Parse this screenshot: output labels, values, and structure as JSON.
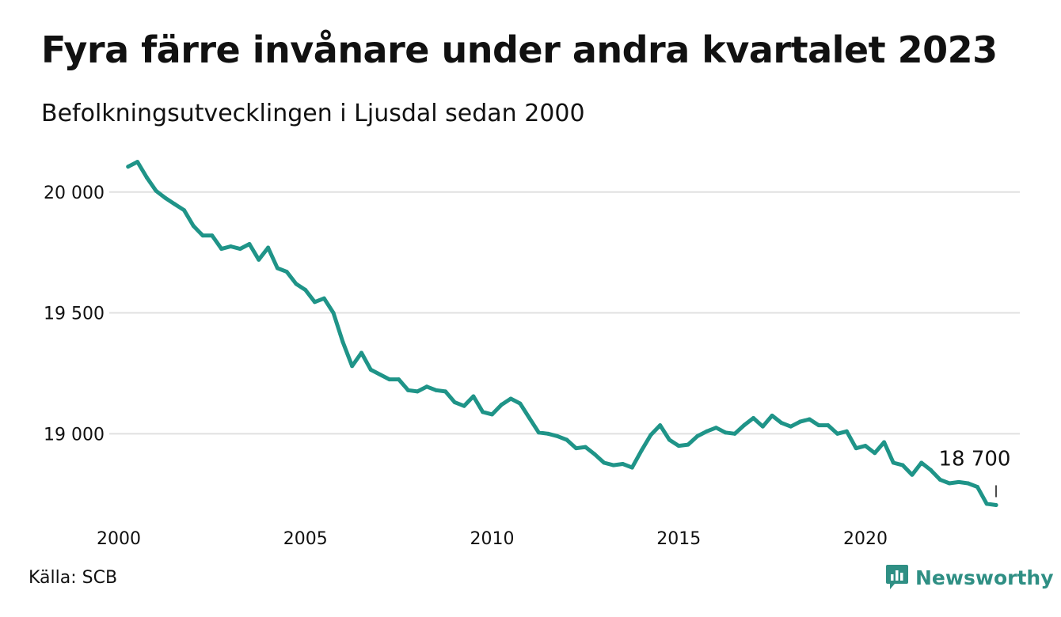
{
  "title": "Fyra färre invånare under andra kvartalet 2023",
  "subtitle": "Befolkningsutvecklingen i Ljusdal sedan 2000",
  "source": "Källa: SCB",
  "brand": {
    "name": "Newsworthy",
    "color": "#2f8f84",
    "icon": "chat-bar-chart-icon"
  },
  "colors": {
    "line": "#1f9488",
    "grid": "#e0e0e0"
  },
  "chart_data": {
    "type": "line",
    "title": "Fyra färre invånare under andra kvartalet 2023",
    "subtitle": "Befolkningsutvecklingen i Ljusdal sedan 2000",
    "xlabel": "",
    "ylabel": "",
    "xlim": [
      2000,
      2023.5
    ],
    "ylim": [
      18700,
      20140
    ],
    "grid": true,
    "x_ticks": [
      2000,
      2005,
      2010,
      2015,
      2020
    ],
    "x_tick_labels": [
      "2000",
      "2005",
      "2010",
      "2015",
      "2020"
    ],
    "y_ticks": [
      19000,
      19500,
      20000
    ],
    "y_tick_labels": [
      "19 000",
      "19 500",
      "20 000"
    ],
    "end_label": "18 700",
    "series": [
      {
        "x": [
          2000.25,
          2000.5,
          2000.75,
          2001.0,
          2001.25,
          2001.5,
          2001.75,
          2002.0,
          2002.25,
          2002.5,
          2002.75,
          2003.0,
          2003.25,
          2003.5,
          2003.75,
          2004.0,
          2004.25,
          2004.5,
          2004.75,
          2005.0,
          2005.25,
          2005.5,
          2005.75,
          2006.0,
          2006.25,
          2006.5,
          2006.75,
          2007.0,
          2007.25,
          2007.5,
          2007.75,
          2008.0,
          2008.25,
          2008.5,
          2008.75,
          2009.0,
          2009.25,
          2009.5,
          2009.75,
          2010.0,
          2010.25,
          2010.5,
          2010.75,
          2011.0,
          2011.25,
          2011.5,
          2011.75,
          2012.0,
          2012.25,
          2012.5,
          2012.75,
          2013.0,
          2013.25,
          2013.5,
          2013.75,
          2014.0,
          2014.25,
          2014.5,
          2014.75,
          2015.0,
          2015.25,
          2015.5,
          2015.75,
          2016.0,
          2016.25,
          2016.5,
          2016.75,
          2017.0,
          2017.25,
          2017.5,
          2017.75,
          2018.0,
          2018.25,
          2018.5,
          2018.75,
          2019.0,
          2019.25,
          2019.5,
          2019.75,
          2020.0,
          2020.25,
          2020.5,
          2020.75,
          2021.0,
          2021.25,
          2021.5,
          2021.75,
          2022.0,
          2022.25,
          2022.5,
          2022.75,
          2023.0,
          2023.25,
          2023.5
        ],
        "y": [
          20105,
          20125,
          20060,
          20005,
          19975,
          19950,
          19925,
          19860,
          19820,
          19820,
          19765,
          19775,
          19765,
          19785,
          19720,
          19770,
          19685,
          19670,
          19620,
          19595,
          19545,
          19560,
          19500,
          19380,
          19280,
          19335,
          19265,
          19245,
          19225,
          19225,
          19180,
          19175,
          19195,
          19180,
          19175,
          19130,
          19115,
          19155,
          19090,
          19080,
          19120,
          19145,
          19125,
          19065,
          19005,
          19000,
          18990,
          18975,
          18940,
          18945,
          18915,
          18880,
          18870,
          18875,
          18860,
          18930,
          18995,
          19035,
          18975,
          18950,
          18955,
          18990,
          19010,
          19025,
          19005,
          19000,
          19035,
          19065,
          19030,
          19075,
          19045,
          19030,
          19050,
          19060,
          19035,
          19035,
          19000,
          19010,
          18940,
          18950,
          18920,
          18965,
          18880,
          18870,
          18830,
          18880,
          18850,
          18810,
          18795,
          18800,
          18795,
          18780,
          18710,
          18705
        ]
      }
    ]
  }
}
